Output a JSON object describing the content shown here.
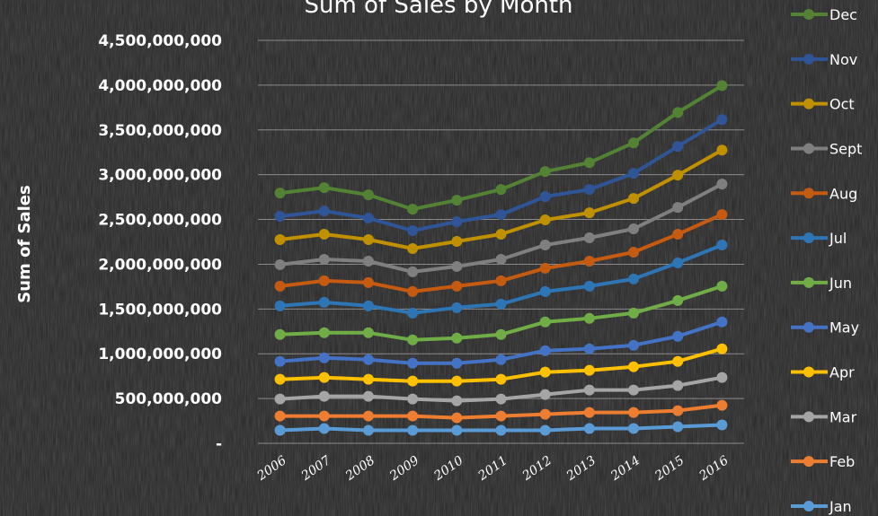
{
  "chart_data": {
    "type": "line",
    "title": "Sum of Sales by Month",
    "ylabel": "Sum of Sales",
    "xlabel": "",
    "ylim": [
      0,
      4500000000
    ],
    "yticks": [
      0,
      500000000,
      1000000000,
      1500000000,
      2000000000,
      2500000000,
      3000000000,
      3500000000,
      4000000000,
      4500000000
    ],
    "ytick_labels": [
      "-",
      "500,000,000",
      "1,000,000,000",
      "1,500,000,000",
      "2,000,000,000",
      "2,500,000,000",
      "3,000,000,000",
      "3,500,000,000",
      "4,000,000,000",
      "4,500,000,000"
    ],
    "categories": [
      "2006",
      "2007",
      "2008",
      "2009",
      "2010",
      "2011",
      "2012",
      "2013",
      "2014",
      "2015",
      "2016"
    ],
    "grid": true,
    "legend_position": "right",
    "series": [
      {
        "name": "Jan",
        "color": "#5b9bd5",
        "values": [
          145000000,
          165000000,
          145000000,
          145000000,
          145000000,
          145000000,
          145000000,
          165000000,
          165000000,
          185000000,
          205000000
        ]
      },
      {
        "name": "Feb",
        "color": "#ed7d31",
        "values": [
          305000000,
          305000000,
          305000000,
          305000000,
          285000000,
          305000000,
          325000000,
          345000000,
          345000000,
          365000000,
          425000000
        ]
      },
      {
        "name": "Mar",
        "color": "#a5a5a5",
        "values": [
          495000000,
          525000000,
          525000000,
          495000000,
          475000000,
          495000000,
          545000000,
          595000000,
          595000000,
          645000000,
          735000000
        ]
      },
      {
        "name": "Apr",
        "color": "#ffc000",
        "values": [
          715000000,
          735000000,
          715000000,
          695000000,
          695000000,
          715000000,
          795000000,
          815000000,
          855000000,
          915000000,
          1055000000
        ]
      },
      {
        "name": "May",
        "color": "#4472c4",
        "values": [
          915000000,
          955000000,
          935000000,
          895000000,
          895000000,
          935000000,
          1035000000,
          1055000000,
          1095000000,
          1195000000,
          1355000000
        ]
      },
      {
        "name": "Jun",
        "color": "#70ad47",
        "values": [
          1215000000,
          1235000000,
          1235000000,
          1155000000,
          1175000000,
          1215000000,
          1355000000,
          1395000000,
          1455000000,
          1595000000,
          1755000000
        ]
      },
      {
        "name": "Jul",
        "color": "#2e75b6",
        "values": [
          1535000000,
          1575000000,
          1535000000,
          1455000000,
          1515000000,
          1555000000,
          1695000000,
          1755000000,
          1835000000,
          2015000000,
          2215000000
        ]
      },
      {
        "name": "Aug",
        "color": "#c55a11",
        "values": [
          1755000000,
          1815000000,
          1795000000,
          1695000000,
          1755000000,
          1815000000,
          1955000000,
          2035000000,
          2135000000,
          2335000000,
          2555000000
        ]
      },
      {
        "name": "Sept",
        "color": "#7f7f7f",
        "values": [
          1995000000,
          2055000000,
          2035000000,
          1915000000,
          1975000000,
          2055000000,
          2215000000,
          2295000000,
          2395000000,
          2635000000,
          2895000000
        ]
      },
      {
        "name": "Oct",
        "color": "#bf9000",
        "values": [
          2275000000,
          2335000000,
          2275000000,
          2175000000,
          2255000000,
          2335000000,
          2495000000,
          2575000000,
          2735000000,
          2995000000,
          3275000000
        ]
      },
      {
        "name": "Nov",
        "color": "#2f5597",
        "values": [
          2535000000,
          2595000000,
          2515000000,
          2375000000,
          2475000000,
          2555000000,
          2755000000,
          2835000000,
          3015000000,
          3315000000,
          3615000000
        ]
      },
      {
        "name": "Dec",
        "color": "#548235",
        "values": [
          2795000000,
          2855000000,
          2775000000,
          2615000000,
          2715000000,
          2835000000,
          3035000000,
          3135000000,
          3355000000,
          3695000000,
          3995000000
        ]
      }
    ]
  }
}
